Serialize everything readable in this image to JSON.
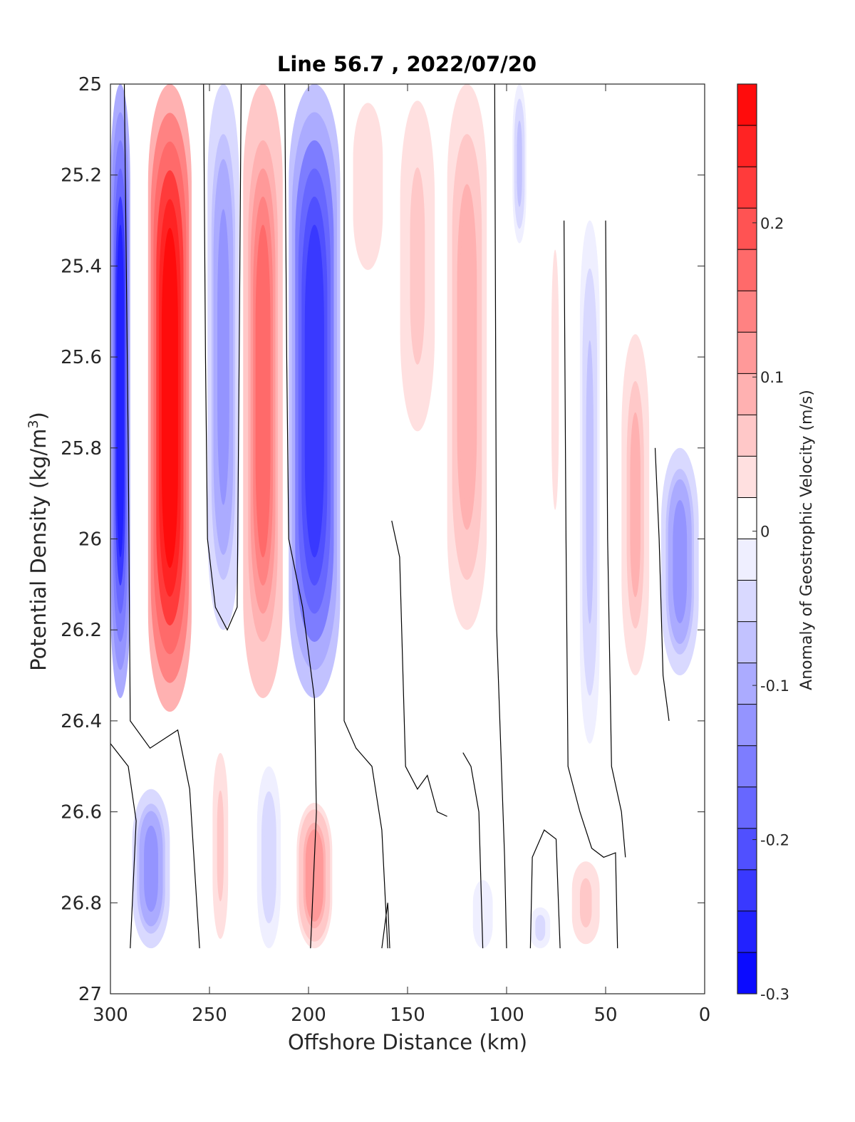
{
  "chart_data": {
    "type": "heatmap",
    "title": "Line 56.7 , 2022/07/20",
    "xlabel": "Offshore Distance (km)",
    "ylabel": "Potential Density (kg/m",
    "ylabel_sup": "3",
    "ylabel_close": ")",
    "xlim": [
      300,
      0
    ],
    "ylim": [
      25,
      27
    ],
    "x_reversed": true,
    "y_reversed": true,
    "x_ticks": [
      300,
      250,
      200,
      150,
      100,
      50,
      0
    ],
    "x_tick_labels": [
      "300",
      "250",
      "200",
      "150",
      "100",
      "50",
      "0"
    ],
    "y_ticks": [
      25,
      25.2,
      25.4,
      25.6,
      25.8,
      26,
      26.2,
      26.4,
      26.6,
      26.8,
      27
    ],
    "y_tick_labels": [
      "25",
      "25.2",
      "25.4",
      "25.6",
      "25.8",
      "26",
      "26.2",
      "26.4",
      "26.6",
      "26.8",
      "27"
    ],
    "colorbar": {
      "label": "Anomaly of Geostrophic Velocity (m/s)",
      "range": [
        -0.3,
        0.29
      ],
      "levels": 22,
      "ticks": [
        -0.3,
        -0.2,
        -0.1,
        0,
        0.1,
        0.2
      ],
      "tick_labels": [
        "-0.3",
        "-0.2",
        "-0.1",
        "0",
        "0.1",
        "0.2"
      ],
      "negative_color": "#0000ff",
      "zero_color": "#ffffff",
      "positive_color": "#ff0000"
    },
    "bands": [
      {
        "x": [
          300,
          290
        ],
        "d_top": 25.0,
        "d_bottom": 26.35,
        "value": -0.26
      },
      {
        "x": [
          281,
          259
        ],
        "d_top": 25.0,
        "d_bottom": 26.38,
        "value": 0.29
      },
      {
        "x": [
          251,
          235
        ],
        "d_top": 25.0,
        "d_bottom": 26.2,
        "value": -0.12
      },
      {
        "x": [
          233,
          213
        ],
        "d_top": 25.0,
        "d_bottom": 26.35,
        "value": 0.16
      },
      {
        "x": [
          210,
          184
        ],
        "d_top": 25.0,
        "d_bottom": 26.35,
        "value": -0.24
      },
      {
        "x": [
          180,
          160
        ],
        "d_top": 25.0,
        "d_bottom": 25.45,
        "value": 0.04
      },
      {
        "x": [
          155,
          135
        ],
        "d_top": 25.0,
        "d_bottom": 25.8,
        "value": 0.05
      },
      {
        "x": [
          130,
          110
        ],
        "d_top": 25.0,
        "d_bottom": 26.2,
        "value": 0.09
      },
      {
        "x": [
          97,
          90
        ],
        "d_top": 25.0,
        "d_bottom": 25.35,
        "value": -0.06
      },
      {
        "x": [
          78,
          73
        ],
        "d_top": 25.3,
        "d_bottom": 26.0,
        "value": 0.04
      },
      {
        "x": [
          63,
          53
        ],
        "d_top": 25.3,
        "d_bottom": 26.45,
        "value": -0.06
      },
      {
        "x": [
          42,
          28
        ],
        "d_top": 25.55,
        "d_bottom": 26.3,
        "value": 0.08
      },
      {
        "x": [
          22,
          3
        ],
        "d_top": 25.8,
        "d_bottom": 26.3,
        "value": -0.12
      },
      {
        "x": [
          289,
          270
        ],
        "d_top": 26.55,
        "d_bottom": 26.9,
        "value": -0.12
      },
      {
        "x": [
          249,
          240
        ],
        "d_top": 26.45,
        "d_bottom": 26.9,
        "value": 0.05
      },
      {
        "x": [
          226,
          214
        ],
        "d_top": 26.5,
        "d_bottom": 26.9,
        "value": -0.05
      },
      {
        "x": [
          206,
          188
        ],
        "d_top": 26.58,
        "d_bottom": 26.9,
        "value": 0.12
      },
      {
        "x": [
          68,
          52
        ],
        "d_top": 26.7,
        "d_bottom": 26.9,
        "value": 0.05
      },
      {
        "x": [
          88,
          78
        ],
        "d_top": 26.81,
        "d_bottom": 26.9,
        "value": -0.04
      },
      {
        "x": [
          117,
          107
        ],
        "d_top": 26.75,
        "d_bottom": 26.9,
        "value": -0.03
      }
    ],
    "zero_contours": [
      [
        [
          293,
          25.0
        ],
        [
          291,
          25.8
        ],
        [
          290,
          26.4
        ],
        [
          280,
          26.46
        ],
        [
          266,
          26.42
        ],
        [
          260,
          26.55
        ],
        [
          255,
          26.9
        ]
      ],
      [
        [
          253,
          25.0
        ],
        [
          252,
          25.6
        ],
        [
          251,
          26.0
        ],
        [
          247,
          26.15
        ],
        [
          241,
          26.2
        ],
        [
          236,
          26.15
        ],
        [
          235,
          25.6
        ],
        [
          234,
          25.0
        ]
      ],
      [
        [
          212,
          25.0
        ],
        [
          211,
          25.6
        ],
        [
          210,
          26.0
        ],
        [
          203,
          26.15
        ],
        [
          197,
          26.35
        ],
        [
          196,
          26.6
        ],
        [
          199,
          26.9
        ]
      ],
      [
        [
          182,
          25.0
        ],
        [
          182,
          26.0
        ],
        [
          182,
          26.4
        ],
        [
          176,
          26.46
        ],
        [
          168,
          26.5
        ],
        [
          163,
          26.64
        ],
        [
          160,
          26.9
        ]
      ],
      [
        [
          300,
          26.45
        ],
        [
          291,
          26.5
        ],
        [
          287,
          26.62
        ],
        [
          290,
          26.9
        ]
      ],
      [
        [
          163,
          26.9
        ],
        [
          160,
          26.8
        ],
        [
          159,
          26.9
        ]
      ],
      [
        [
          158,
          25.96
        ],
        [
          154,
          26.04
        ],
        [
          151,
          26.5
        ],
        [
          145,
          26.55
        ],
        [
          140,
          26.52
        ],
        [
          135,
          26.6
        ],
        [
          130,
          26.61
        ]
      ],
      [
        [
          122,
          26.47
        ],
        [
          118,
          26.5
        ],
        [
          114,
          26.6
        ],
        [
          112,
          26.9
        ]
      ],
      [
        [
          106,
          25.0
        ],
        [
          105,
          26.2
        ],
        [
          101,
          26.7
        ],
        [
          100,
          26.9
        ]
      ],
      [
        [
          88,
          26.9
        ],
        [
          87,
          26.7
        ],
        [
          81,
          26.64
        ],
        [
          75,
          26.66
        ],
        [
          73,
          26.9
        ]
      ],
      [
        [
          71,
          25.3
        ],
        [
          70,
          26.0
        ],
        [
          69,
          26.5
        ],
        [
          63,
          26.6
        ],
        [
          57,
          26.68
        ],
        [
          51,
          26.7
        ],
        [
          45,
          26.69
        ],
        [
          44,
          26.9
        ]
      ],
      [
        [
          50,
          25.3
        ],
        [
          49,
          26.0
        ],
        [
          47,
          26.5
        ],
        [
          42,
          26.6
        ],
        [
          40,
          26.7
        ]
      ],
      [
        [
          25,
          25.8
        ],
        [
          23,
          26.0
        ],
        [
          21,
          26.3
        ],
        [
          18,
          26.4
        ]
      ]
    ],
    "masked_regions": [
      "upper-right: x < 95 for d < 25.3",
      "right: x < 23 for d < 25.8",
      "bottom: d > 26.9"
    ]
  }
}
